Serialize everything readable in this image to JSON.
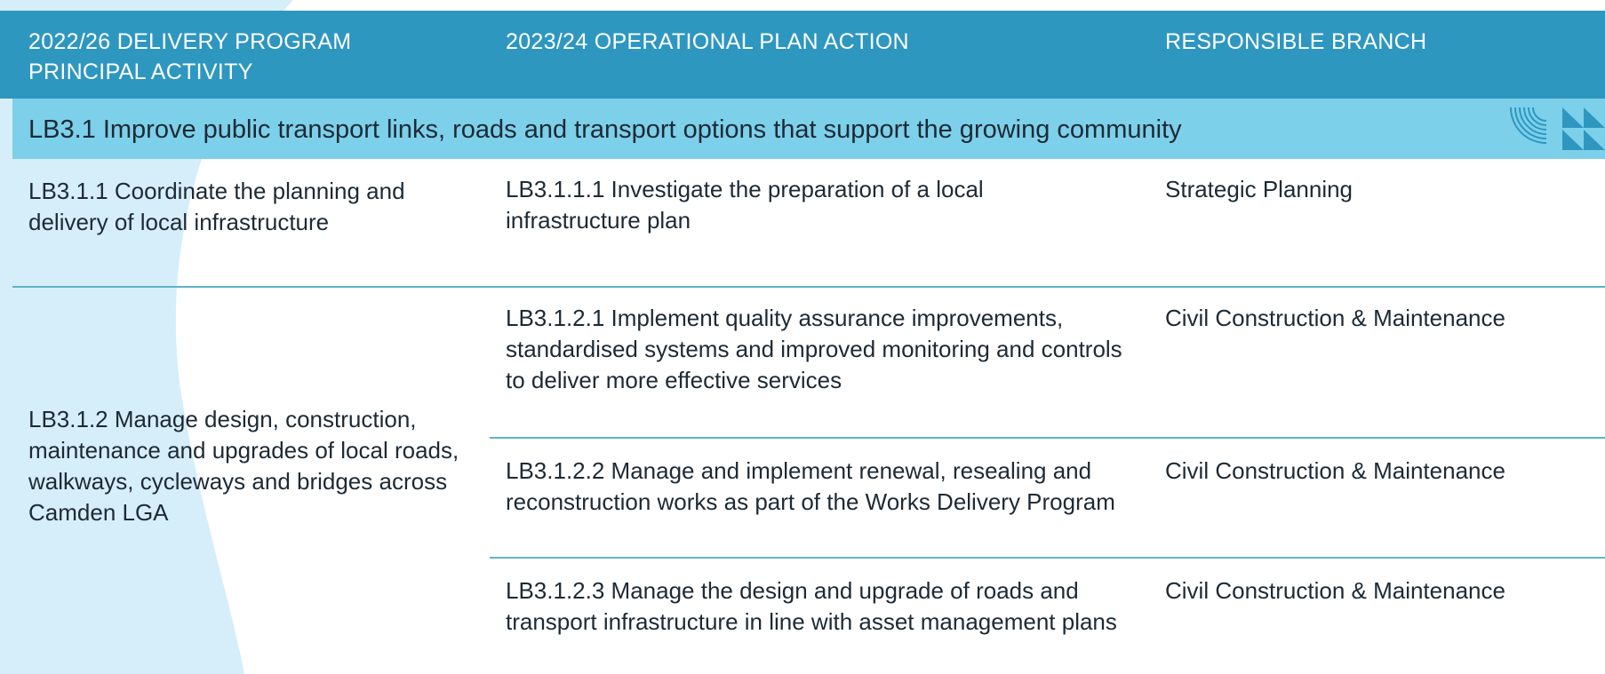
{
  "header": {
    "columns": [
      "2022/26 DELIVERY PROGRAM PRINCIPAL ACTIVITY",
      "2023/24 OPERATIONAL PLAN ACTION",
      "RESPONSIBLE BRANCH"
    ]
  },
  "section": {
    "title": "LB3.1 Improve public transport links, roads and transport options that support the growing community"
  },
  "rows": [
    {
      "activity": "LB3.1.1 Coordinate the planning and delivery of local infrastructure",
      "actions": [
        {
          "action": "LB3.1.1.1 Investigate the preparation of a local infrastructure plan",
          "branch": "Strategic Planning"
        }
      ]
    },
    {
      "activity": "LB3.1.2 Manage design, construction, maintenance and upgrades of local roads, walkways, cycleways and bridges across Camden LGA",
      "actions": [
        {
          "action": "LB3.1.2.1 Implement quality assurance improvements, standardised systems and improved monitoring and controls to deliver more effective services",
          "branch": "Civil Construction & Maintenance"
        },
        {
          "action": "LB3.1.2.2 Manage and implement renewal, resealing and reconstruction works as part of the Works Delivery Program",
          "branch": "Civil Construction & Maintenance"
        },
        {
          "action": "LB3.1.2.3 Manage the design and upgrade of roads and transport infrastructure in line with asset management plans",
          "branch": "Civil Construction & Maintenance"
        }
      ]
    }
  ]
}
